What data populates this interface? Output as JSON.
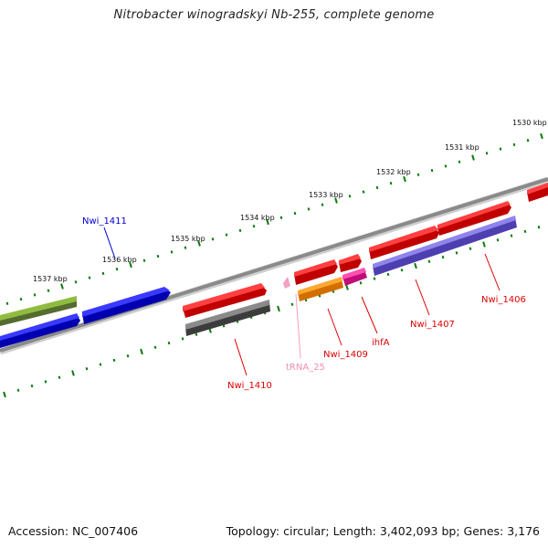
{
  "title": "Nitrobacter winogradskyi Nb-255, complete genome",
  "footer": {
    "accession": "Accession: NC_007406",
    "summary": "Topology: circular; Length: 3,402,093 bp; Genes: 3,176"
  },
  "scale_labels": [
    "1530 kbp",
    "1531 kbp",
    "1532 kbp",
    "1533 kbp",
    "1534 kbp",
    "1535 kbp",
    "1536 kbp",
    "1537 kbp"
  ],
  "gene_labels": [
    {
      "text": "Nwi_1411",
      "color": "#0000cc"
    },
    {
      "text": "Nwi_1410",
      "color": "#dd0000"
    },
    {
      "text": "tRNA_25",
      "color": "#f08cb0"
    },
    {
      "text": "Nwi_1409",
      "color": "#dd0000"
    },
    {
      "text": "ihfA",
      "color": "#dd0000"
    },
    {
      "text": "Nwi_1407",
      "color": "#dd0000"
    },
    {
      "text": "Nwi_1406",
      "color": "#dd0000"
    }
  ],
  "colors": {
    "backbone": "#8a8a8a",
    "tick": "#0a7a0a",
    "red": "#ee0000",
    "blue": "#0000ee",
    "olive": "#6b8e23",
    "gray": "#5a5a5a",
    "orange": "#ff8c00",
    "magenta": "#ee1493",
    "slate": "#6a5acd",
    "pink": "#f4a0c0"
  }
}
